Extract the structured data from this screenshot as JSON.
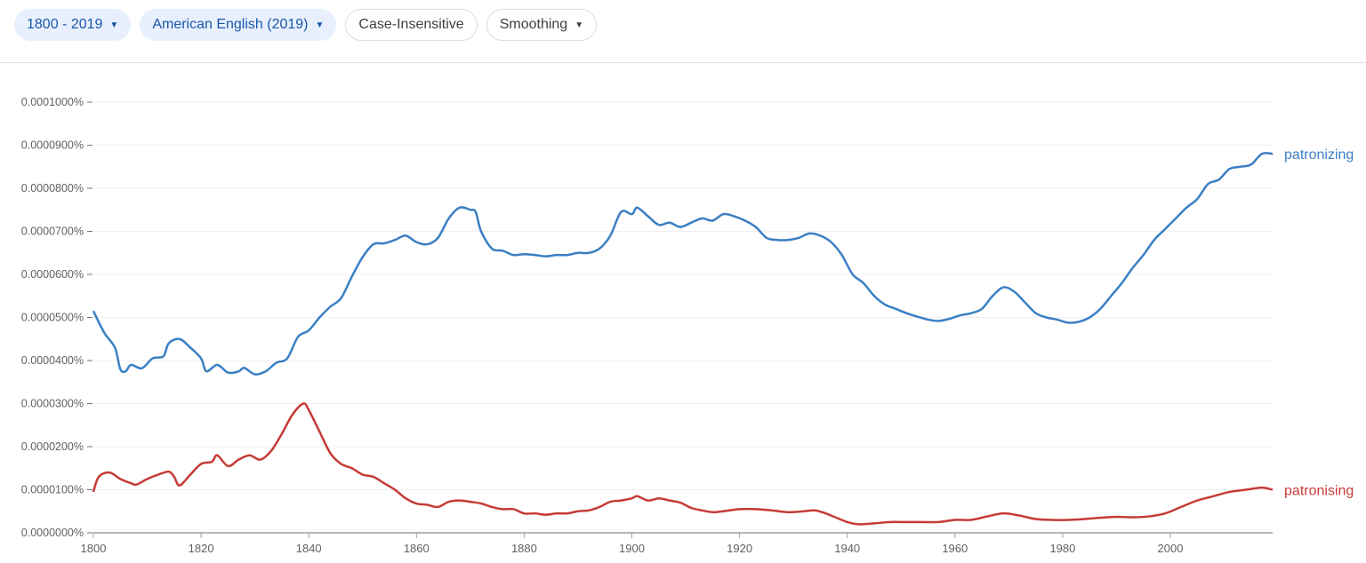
{
  "toolbar": {
    "year_range": "1800 - 2019",
    "corpus": "American English (2019)",
    "case": "Case-Insensitive",
    "smoothing": "Smoothing"
  },
  "chart_data": {
    "type": "line",
    "xlim": [
      1800,
      2019
    ],
    "ylim": [
      0,
      1e-07
    ],
    "x_ticks": [
      "1800",
      "1820",
      "1840",
      "1860",
      "1880",
      "1900",
      "1920",
      "1940",
      "1960",
      "1980",
      "2000"
    ],
    "y_ticks": [
      "0.0000000%",
      "0.0000100%",
      "0.0000200%",
      "0.0000300%",
      "0.0000400%",
      "0.0000500%",
      "0.0000600%",
      "0.0000700%",
      "0.0000800%",
      "0.0000900%",
      "0.0001000%"
    ],
    "grid": true,
    "legend": "line-end labels",
    "series": [
      {
        "name": "patronizing",
        "color": "#3b7fc4",
        "x": [
          1800,
          1802,
          1804,
          1805,
          1806,
          1807,
          1809,
          1811,
          1813,
          1814,
          1816,
          1818,
          1820,
          1821,
          1823,
          1825,
          1827,
          1828,
          1830,
          1832,
          1834,
          1836,
          1838,
          1840,
          1842,
          1844,
          1846,
          1848,
          1850,
          1852,
          1854,
          1856,
          1858,
          1860,
          1862,
          1864,
          1866,
          1868,
          1870,
          1871,
          1872,
          1874,
          1876,
          1878,
          1880,
          1882,
          1884,
          1886,
          1888,
          1890,
          1892,
          1894,
          1896,
          1898,
          1900,
          1901,
          1903,
          1905,
          1907,
          1909,
          1911,
          1913,
          1915,
          1917,
          1919,
          1921,
          1923,
          1925,
          1927,
          1929,
          1931,
          1933,
          1935,
          1937,
          1939,
          1941,
          1943,
          1945,
          1947,
          1949,
          1951,
          1953,
          1955,
          1957,
          1959,
          1961,
          1963,
          1965,
          1967,
          1969,
          1971,
          1973,
          1975,
          1977,
          1979,
          1981,
          1983,
          1985,
          1987,
          1989,
          1991,
          1993,
          1995,
          1997,
          1999,
          2001,
          2003,
          2005,
          2007,
          2009,
          2011,
          2013,
          2015,
          2017,
          2019
        ],
        "y": [
          5.15e-08,
          4.65e-08,
          4.3e-08,
          3.8e-08,
          3.75e-08,
          3.9e-08,
          3.82e-08,
          4.05e-08,
          4.1e-08,
          4.4e-08,
          4.5e-08,
          4.3e-08,
          4.05e-08,
          3.75e-08,
          3.9e-08,
          3.72e-08,
          3.75e-08,
          3.83e-08,
          3.68e-08,
          3.75e-08,
          3.95e-08,
          4.05e-08,
          4.55e-08,
          4.7e-08,
          5e-08,
          5.25e-08,
          5.45e-08,
          5.95e-08,
          6.4e-08,
          6.7e-08,
          6.72e-08,
          6.8e-08,
          6.9e-08,
          6.75e-08,
          6.7e-08,
          6.85e-08,
          7.3e-08,
          7.55e-08,
          7.5e-08,
          7.45e-08,
          7e-08,
          6.6e-08,
          6.55e-08,
          6.45e-08,
          6.47e-08,
          6.45e-08,
          6.42e-08,
          6.45e-08,
          6.45e-08,
          6.5e-08,
          6.5e-08,
          6.6e-08,
          6.9e-08,
          7.45e-08,
          7.4e-08,
          7.55e-08,
          7.35e-08,
          7.15e-08,
          7.2e-08,
          7.1e-08,
          7.2e-08,
          7.3e-08,
          7.25e-08,
          7.4e-08,
          7.35e-08,
          7.25e-08,
          7.1e-08,
          6.85e-08,
          6.8e-08,
          6.8e-08,
          6.85e-08,
          6.95e-08,
          6.9e-08,
          6.75e-08,
          6.45e-08,
          6e-08,
          5.8e-08,
          5.5e-08,
          5.3e-08,
          5.2e-08,
          5.1e-08,
          5.02e-08,
          4.95e-08,
          4.92e-08,
          4.97e-08,
          5.05e-08,
          5.1e-08,
          5.2e-08,
          5.5e-08,
          5.7e-08,
          5.6e-08,
          5.35e-08,
          5.1e-08,
          5e-08,
          4.95e-08,
          4.88e-08,
          4.9e-08,
          5e-08,
          5.2e-08,
          5.5e-08,
          5.8e-08,
          6.15e-08,
          6.45e-08,
          6.8e-08,
          7.05e-08,
          7.3e-08,
          7.55e-08,
          7.75e-08,
          8.1e-08,
          8.2e-08,
          8.45e-08,
          8.5e-08,
          8.55e-08,
          8.8e-08,
          8.8e-08
        ]
      },
      {
        "name": "patronising",
        "color": "#c63b36",
        "x": [
          1800,
          1801,
          1803,
          1805,
          1807,
          1808,
          1810,
          1812,
          1814,
          1815,
          1816,
          1818,
          1820,
          1822,
          1823,
          1825,
          1827,
          1829,
          1831,
          1833,
          1835,
          1837,
          1839,
          1840,
          1842,
          1844,
          1846,
          1848,
          1850,
          1852,
          1854,
          1856,
          1858,
          1860,
          1862,
          1864,
          1866,
          1868,
          1870,
          1872,
          1874,
          1876,
          1878,
          1880,
          1882,
          1884,
          1886,
          1888,
          1890,
          1892,
          1894,
          1896,
          1898,
          1900,
          1901,
          1903,
          1905,
          1907,
          1909,
          1911,
          1913,
          1915,
          1917,
          1920,
          1923,
          1926,
          1929,
          1932,
          1934,
          1936,
          1938,
          1940,
          1942,
          1945,
          1948,
          1951,
          1954,
          1957,
          1960,
          1963,
          1966,
          1969,
          1972,
          1975,
          1978,
          1981,
          1984,
          1987,
          1990,
          1993,
          1996,
          1999,
          2002,
          2005,
          2008,
          2011,
          2014,
          2017,
          2019
        ],
        "y": [
          9.5e-09,
          1.3e-08,
          1.4e-08,
          1.25e-08,
          1.15e-08,
          1.12e-08,
          1.25e-08,
          1.35e-08,
          1.42e-08,
          1.3e-08,
          1.1e-08,
          1.35e-08,
          1.6e-08,
          1.65e-08,
          1.8e-08,
          1.55e-08,
          1.7e-08,
          1.8e-08,
          1.7e-08,
          1.9e-08,
          2.3e-08,
          2.75e-08,
          3e-08,
          2.85e-08,
          2.35e-08,
          1.85e-08,
          1.6e-08,
          1.5e-08,
          1.35e-08,
          1.3e-08,
          1.15e-08,
          1e-08,
          8e-09,
          6.8e-09,
          6.5e-09,
          6e-09,
          7.2e-09,
          7.5e-09,
          7.2e-09,
          6.8e-09,
          6e-09,
          5.5e-09,
          5.5e-09,
          4.5e-09,
          4.5e-09,
          4.2e-09,
          4.5e-09,
          4.5e-09,
          5e-09,
          5.2e-09,
          6e-09,
          7.2e-09,
          7.5e-09,
          8e-09,
          8.5e-09,
          7.5e-09,
          8e-09,
          7.5e-09,
          7e-09,
          5.8e-09,
          5.2e-09,
          4.8e-09,
          5e-09,
          5.5e-09,
          5.5e-09,
          5.2e-09,
          4.8e-09,
          5e-09,
          5.2e-09,
          4.5e-09,
          3.5e-09,
          2.5e-09,
          2e-09,
          2.2e-09,
          2.5e-09,
          2.5e-09,
          2.5e-09,
          2.5e-09,
          3e-09,
          3e-09,
          3.8e-09,
          4.5e-09,
          4e-09,
          3.2e-09,
          3e-09,
          3e-09,
          3.2e-09,
          3.5e-09,
          3.7e-09,
          3.6e-09,
          3.8e-09,
          4.5e-09,
          6e-09,
          7.5e-09,
          8.5e-09,
          9.5e-09,
          1e-08,
          1.05e-08,
          1e-08
        ]
      }
    ]
  }
}
